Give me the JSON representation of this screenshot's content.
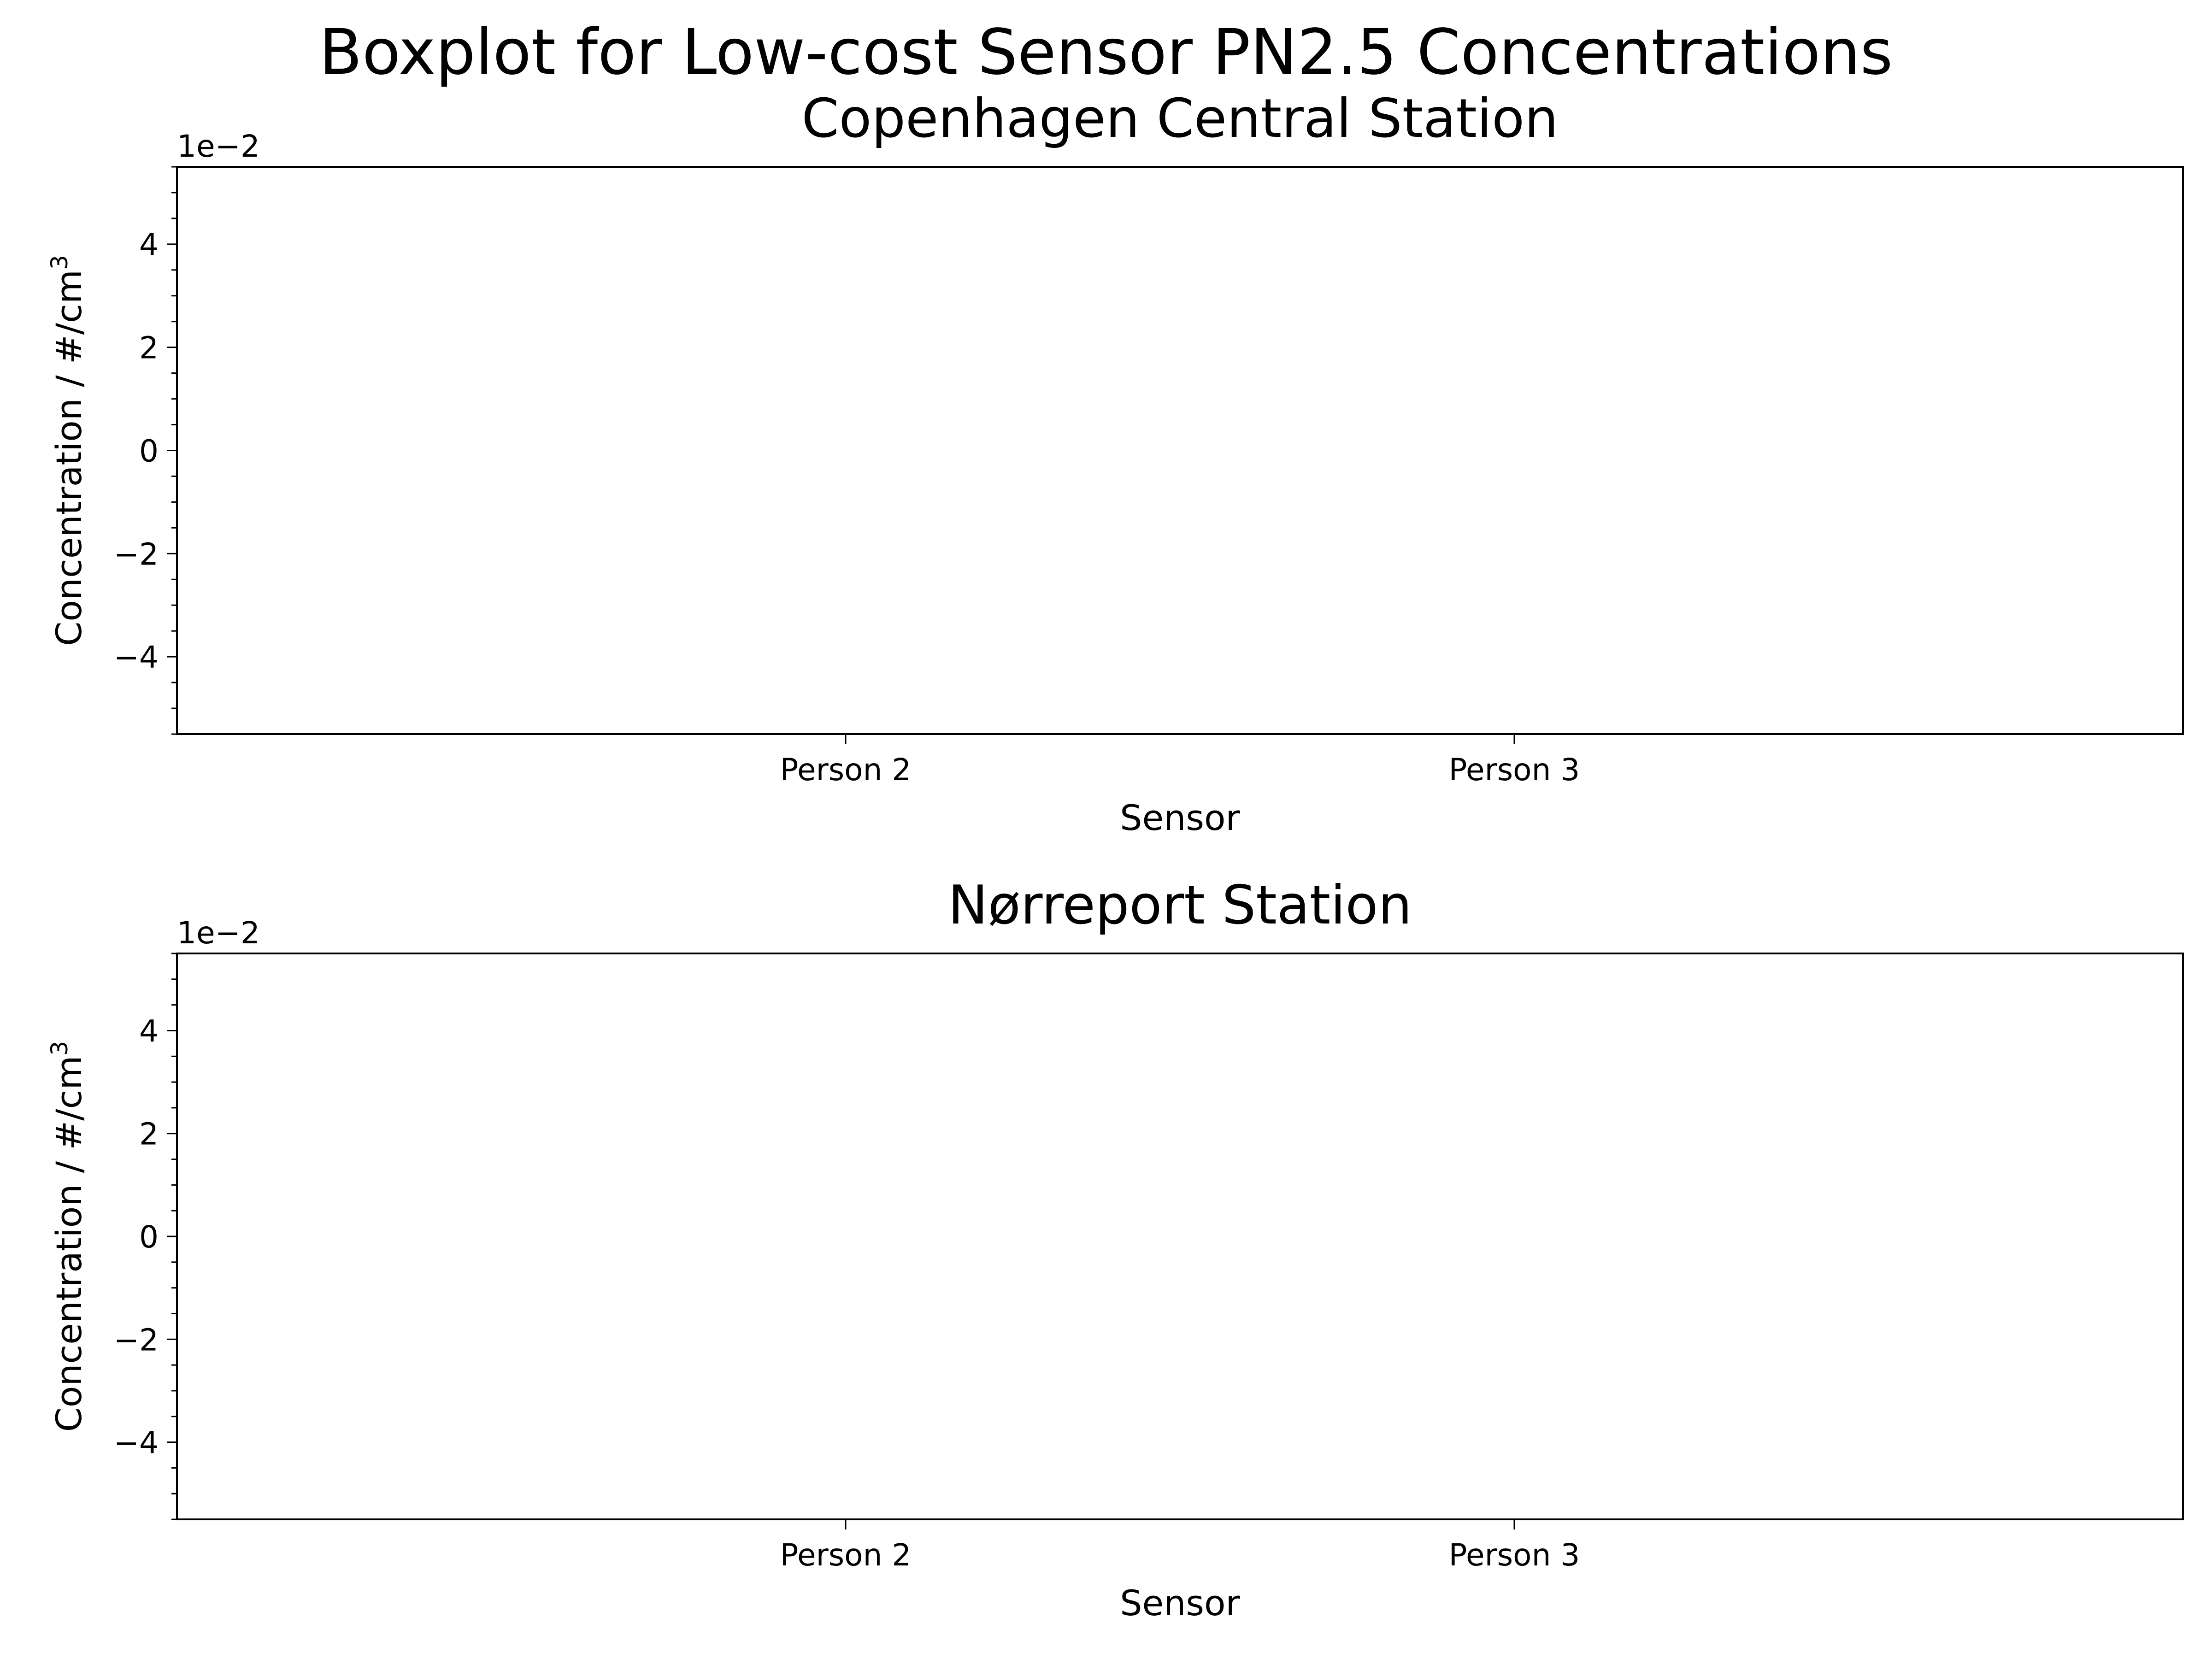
{
  "chart_data": {
    "type": "boxplot",
    "title": "Boxplot for Low-cost Sensor PN2.5 Concentrations",
    "panels": [
      {
        "title": "Copenhagen Central Station",
        "xlabel": "Sensor",
        "ylabel": "Concentration / #/cm",
        "ylabel_superscript": "3",
        "offset_text": "1e−2",
        "categories": [
          "Person 2",
          "Person 3"
        ],
        "series": [],
        "ylim": [
          -0.055,
          0.055
        ],
        "yticks": [
          -4,
          -2,
          0,
          2,
          4
        ],
        "ytick_labels": [
          "−4",
          "−2",
          "0",
          "2",
          "4"
        ],
        "ytick_scale": 0.01,
        "minor_ticks": true,
        "grid": false
      },
      {
        "title": "Nørreport Station",
        "xlabel": "Sensor",
        "ylabel": "Concentration / #/cm",
        "ylabel_superscript": "3",
        "offset_text": "1e−2",
        "categories": [
          "Person 2",
          "Person 3"
        ],
        "series": [],
        "ylim": [
          -0.055,
          0.055
        ],
        "yticks": [
          -4,
          -2,
          0,
          2,
          4
        ],
        "ytick_labels": [
          "−4",
          "−2",
          "0",
          "2",
          "4"
        ],
        "ytick_scale": 0.01,
        "minor_ticks": true,
        "grid": false
      }
    ]
  }
}
